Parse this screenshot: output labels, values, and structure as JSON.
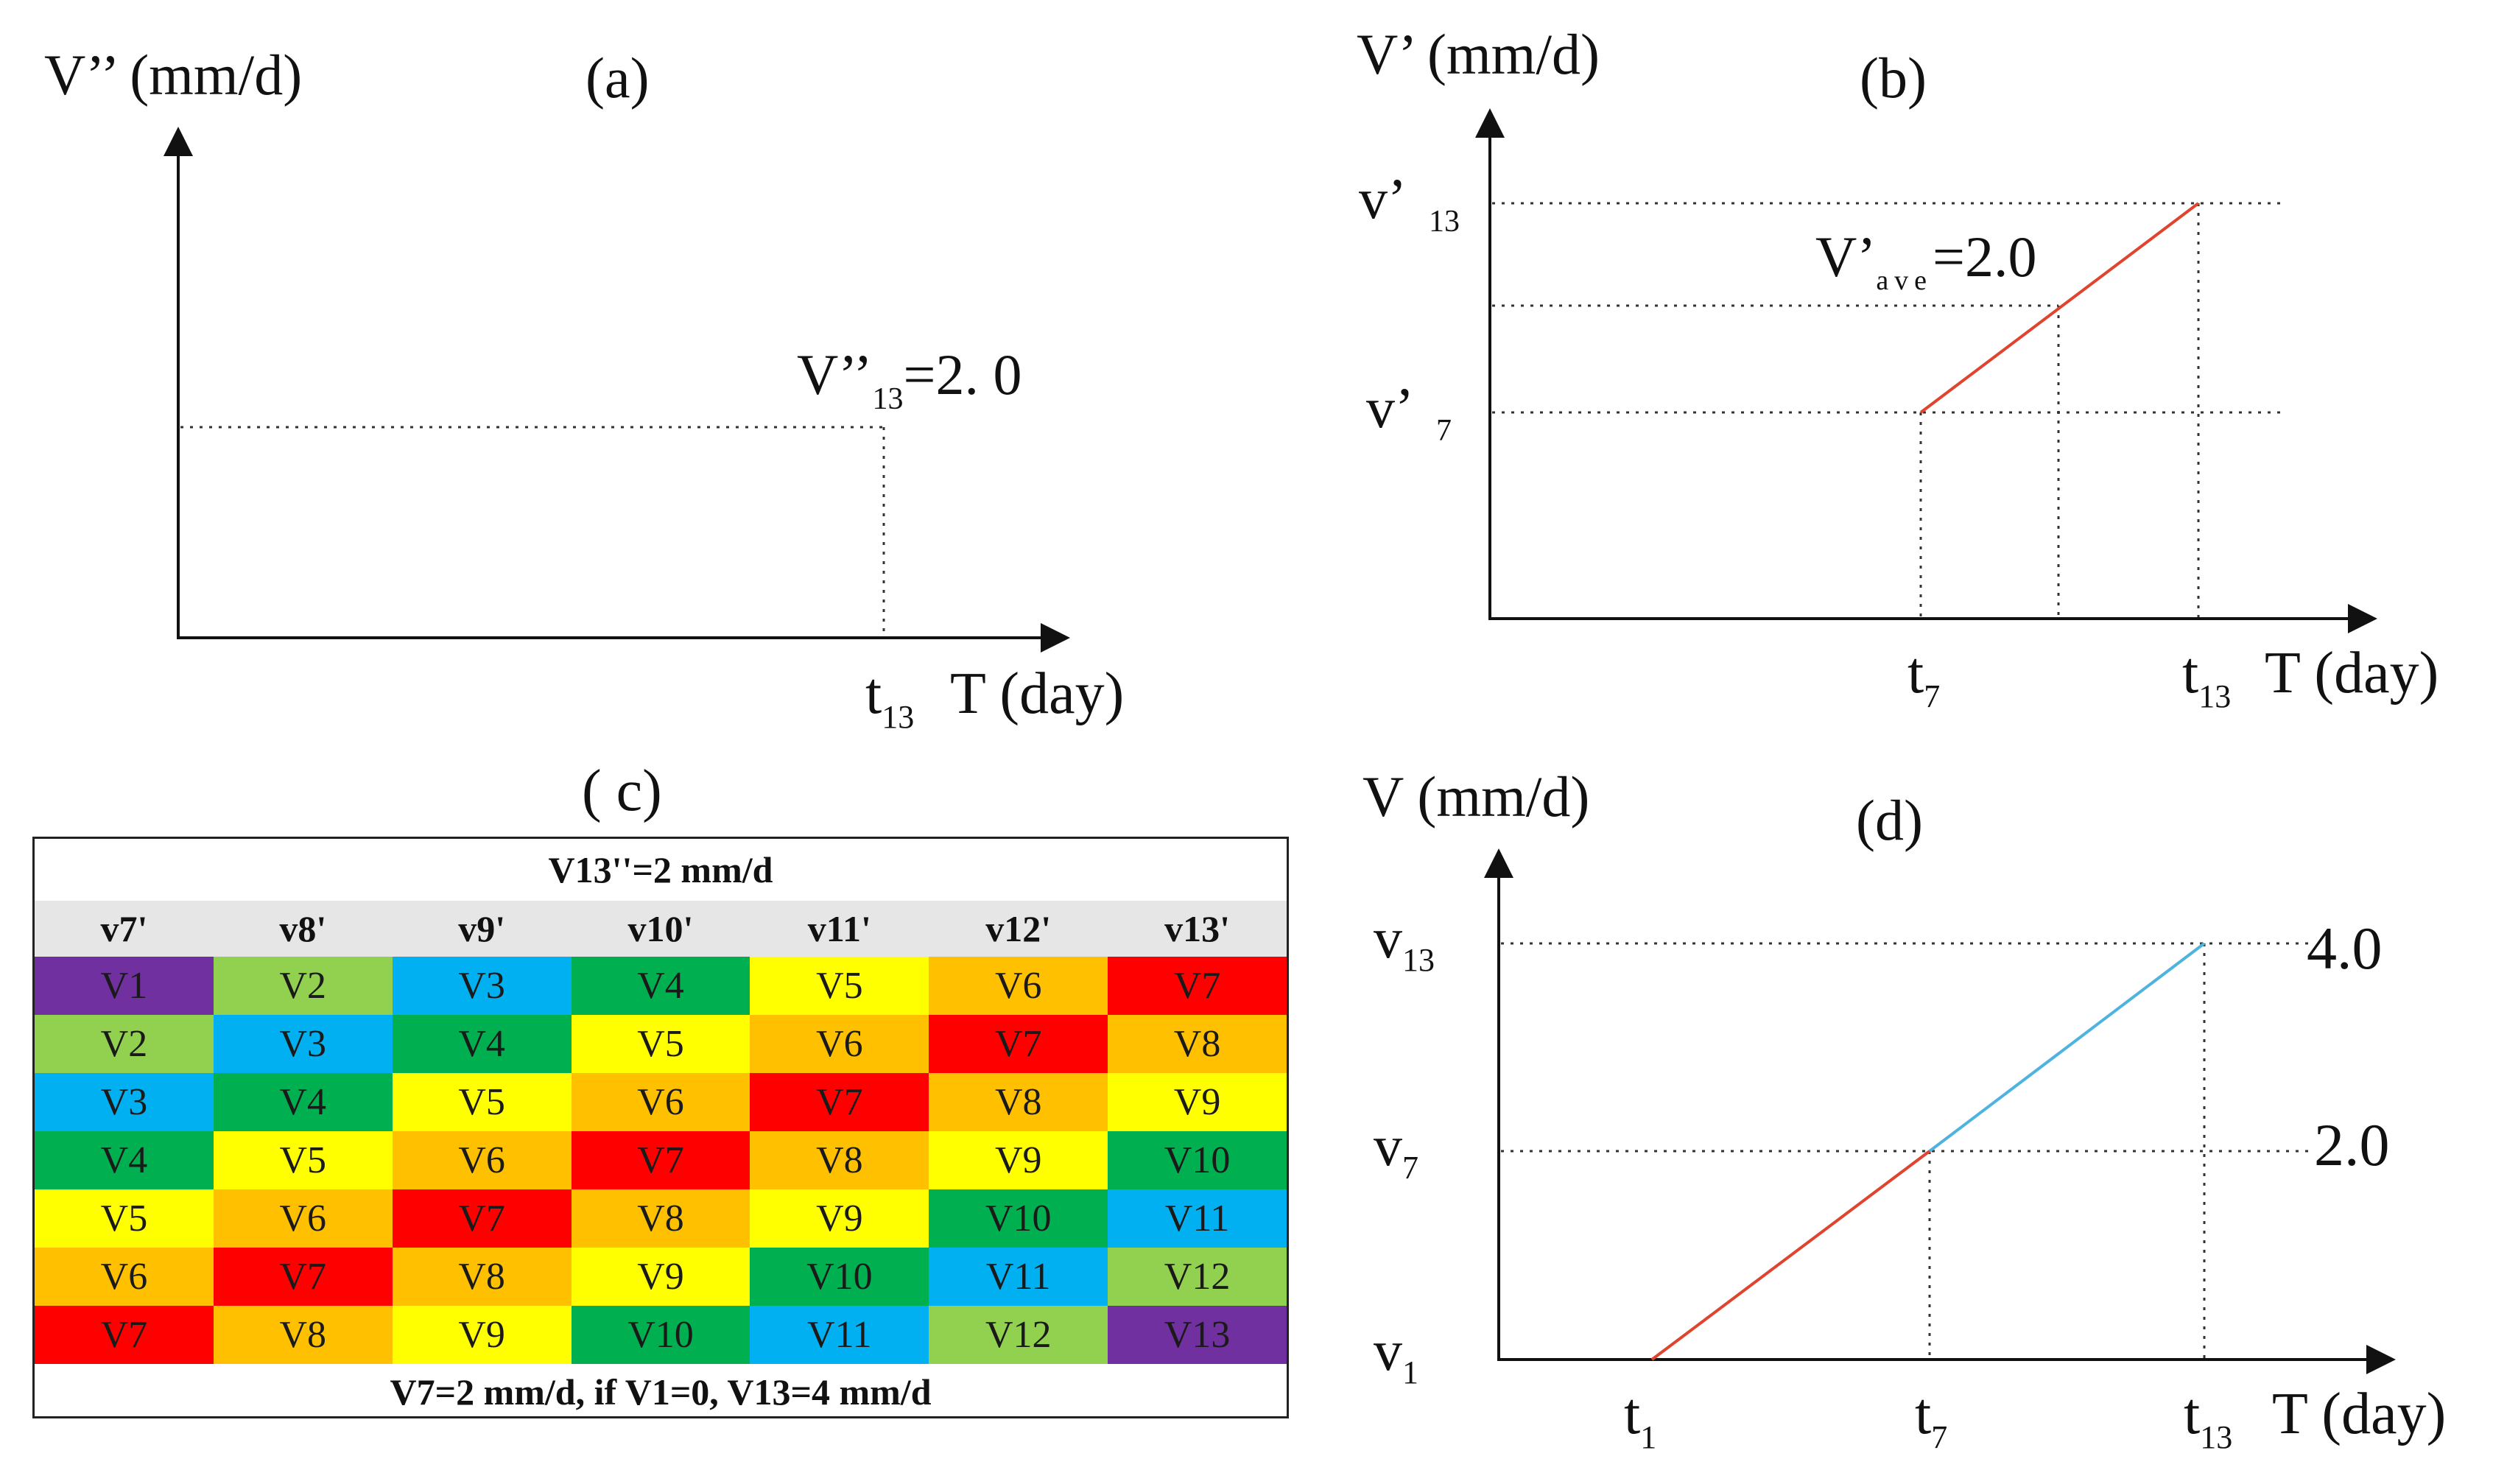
{
  "panel_a": {
    "tag": "(a)",
    "ylabel": "V’’ (mm/d)",
    "annot_main": "V’’",
    "annot_sub": "13",
    "annot_tail": "=2. 0",
    "t13": "t",
    "t13_sub": "13",
    "xlabel": "T (day)"
  },
  "panel_b": {
    "tag": "(b)",
    "ylabel": "V’ (mm/d)",
    "v13": "v’",
    "v13_sub": "13",
    "v7": "v’",
    "v7_sub": "7",
    "annot_main": "V’",
    "annot_sub": "ave",
    "annot_tail": "=2.0",
    "t7": "t",
    "t7_sub": "7",
    "t13": "t",
    "t13_sub": "13",
    "xlabel": "T (day)",
    "line_color": "#e0432e"
  },
  "panel_c": {
    "tag": "( c)",
    "header": "V13''=2 mm/d",
    "columns": [
      "v7'",
      "v8'",
      "v9'",
      "v10'",
      "v11'",
      "v12'",
      "v13'"
    ],
    "rows": [
      [
        "V1",
        "V2",
        "V3",
        "V4",
        "V5",
        "V6",
        "V7"
      ],
      [
        "V2",
        "V3",
        "V4",
        "V5",
        "V6",
        "V7",
        "V8"
      ],
      [
        "V3",
        "V4",
        "V5",
        "V6",
        "V7",
        "V8",
        "V9"
      ],
      [
        "V4",
        "V5",
        "V6",
        "V7",
        "V8",
        "V9",
        "V10"
      ],
      [
        "V5",
        "V6",
        "V7",
        "V8",
        "V9",
        "V10",
        "V11"
      ],
      [
        "V6",
        "V7",
        "V8",
        "V9",
        "V10",
        "V11",
        "V12"
      ],
      [
        "V7",
        "V8",
        "V9",
        "V10",
        "V11",
        "V12",
        "V13"
      ]
    ],
    "footer": "V7=2 mm/d, if V1=0, V13=4 mm/d",
    "colors": {
      "V1": "#7030a0",
      "V2": "#92d050",
      "V3": "#00b0f0",
      "V4": "#00b050",
      "V5": "#ffff00",
      "V6": "#ffc000",
      "V7": "#ff0000",
      "V8": "#ffc000",
      "V9": "#ffff00",
      "V10": "#00b050",
      "V11": "#00b0f0",
      "V12": "#92d050",
      "V13": "#7030a0"
    }
  },
  "panel_d": {
    "tag": "(d)",
    "ylabel": "V (mm/d)",
    "v13": "v",
    "v13_sub": "13",
    "v7": "v",
    "v7_sub": "7",
    "v1": "v",
    "v1_sub": "1",
    "val_top": "4.0",
    "val_mid": "2.0",
    "t1": "t",
    "t1_sub": "1",
    "t7": "t",
    "t7_sub": "7",
    "t13": "t",
    "t13_sub": "13",
    "xlabel": "T (day)",
    "line_color_lower": "#e0432e",
    "line_color_upper": "#4fb3e0"
  }
}
